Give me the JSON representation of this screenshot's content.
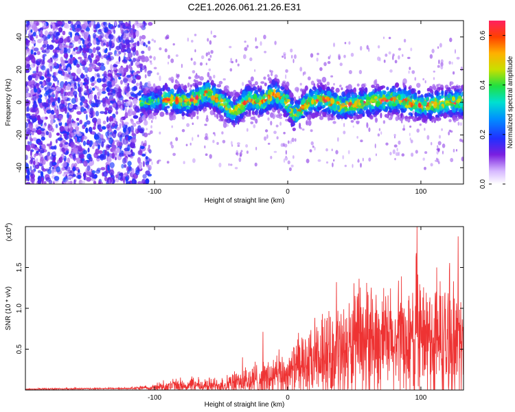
{
  "title": "C2E1.2026.061.21.26.E31",
  "chart_data": [
    {
      "type": "heatmap",
      "xlabel": "Height of straight line (km)",
      "ylabel": "Frequency (Hz)",
      "xlim": [
        -197,
        132
      ],
      "ylim": [
        -50,
        50
      ],
      "xticks": [
        -100,
        0,
        100
      ],
      "yticks": [
        -40,
        -20,
        0,
        20,
        40
      ],
      "colorbar": {
        "label": "Normalized spectral amplitude",
        "range": [
          0.0,
          0.66
        ],
        "ticks": [
          0.0,
          0.2,
          0.4,
          0.6
        ],
        "tick_labels": [
          "0.0",
          "0.2",
          "0.4",
          "0.6"
        ]
      },
      "regions": [
        {
          "name": "broadband noise",
          "x_range": [
            -197,
            -110
          ],
          "y_range": [
            -50,
            50
          ],
          "amplitude": 0.12
        },
        {
          "name": "signal band",
          "x_range": [
            -110,
            132
          ],
          "y_center": 0,
          "y_halfwidth": 15,
          "amplitude_peak": 0.6
        }
      ],
      "band_center_hz": [
        {
          "x": -105,
          "y": 0
        },
        {
          "x": -90,
          "y": 2
        },
        {
          "x": -75,
          "y": 0
        },
        {
          "x": -60,
          "y": 6
        },
        {
          "x": -50,
          "y": 0
        },
        {
          "x": -40,
          "y": -6
        },
        {
          "x": -30,
          "y": 2
        },
        {
          "x": -20,
          "y": 0
        },
        {
          "x": -10,
          "y": 5
        },
        {
          "x": 0,
          "y": 0
        },
        {
          "x": 5,
          "y": -8
        },
        {
          "x": 15,
          "y": 0
        },
        {
          "x": 25,
          "y": 2
        },
        {
          "x": 40,
          "y": -2
        },
        {
          "x": 60,
          "y": 0
        },
        {
          "x": 80,
          "y": 2
        },
        {
          "x": 100,
          "y": -2
        },
        {
          "x": 120,
          "y": 0
        },
        {
          "x": 132,
          "y": 0
        }
      ]
    },
    {
      "type": "line",
      "series": [
        {
          "name": "SNR",
          "color": "#ee3333"
        }
      ],
      "xlabel": "Height of straight line (km)",
      "ylabel": "SNR (10 * v/v)",
      "multiplier": "(x10",
      "multiplier_exp": "4",
      "multiplier_close": ")",
      "xlim": [
        -197,
        132
      ],
      "ylim": [
        0,
        2.0
      ],
      "xticks": [
        -100,
        0,
        100
      ],
      "yticks": [
        0.5,
        1.0,
        1.5
      ],
      "ytick_labels": [
        "0.5",
        "1.0",
        "1.5"
      ],
      "envelope": {
        "x": [
          -197,
          -120,
          -100,
          -90,
          -70,
          -50,
          -40,
          -30,
          -20,
          -10,
          0,
          10,
          20,
          30,
          40,
          50,
          60,
          80,
          100,
          120,
          132
        ],
        "mean": [
          0.01,
          0.02,
          0.03,
          0.05,
          0.05,
          0.06,
          0.08,
          0.1,
          0.12,
          0.15,
          0.2,
          0.28,
          0.3,
          0.4,
          0.45,
          0.5,
          0.55,
          0.55,
          0.6,
          0.55,
          0.55
        ],
        "spread": [
          0.01,
          0.01,
          0.04,
          0.1,
          0.1,
          0.1,
          0.15,
          0.2,
          0.3,
          0.3,
          0.3,
          0.4,
          0.45,
          0.55,
          0.65,
          0.7,
          0.8,
          0.7,
          0.9,
          0.8,
          0.7
        ]
      },
      "peaks": [
        {
          "x": -34,
          "y": 0.4
        },
        {
          "x": 8,
          "y": 0.7
        },
        {
          "x": 40,
          "y": 0.93
        },
        {
          "x": 60,
          "y": 1.2
        },
        {
          "x": 97,
          "y": 2.0
        },
        {
          "x": 115,
          "y": 1.15
        },
        {
          "x": 128,
          "y": 1.88
        },
        {
          "x": 125,
          "y": 1.12
        }
      ]
    }
  ]
}
